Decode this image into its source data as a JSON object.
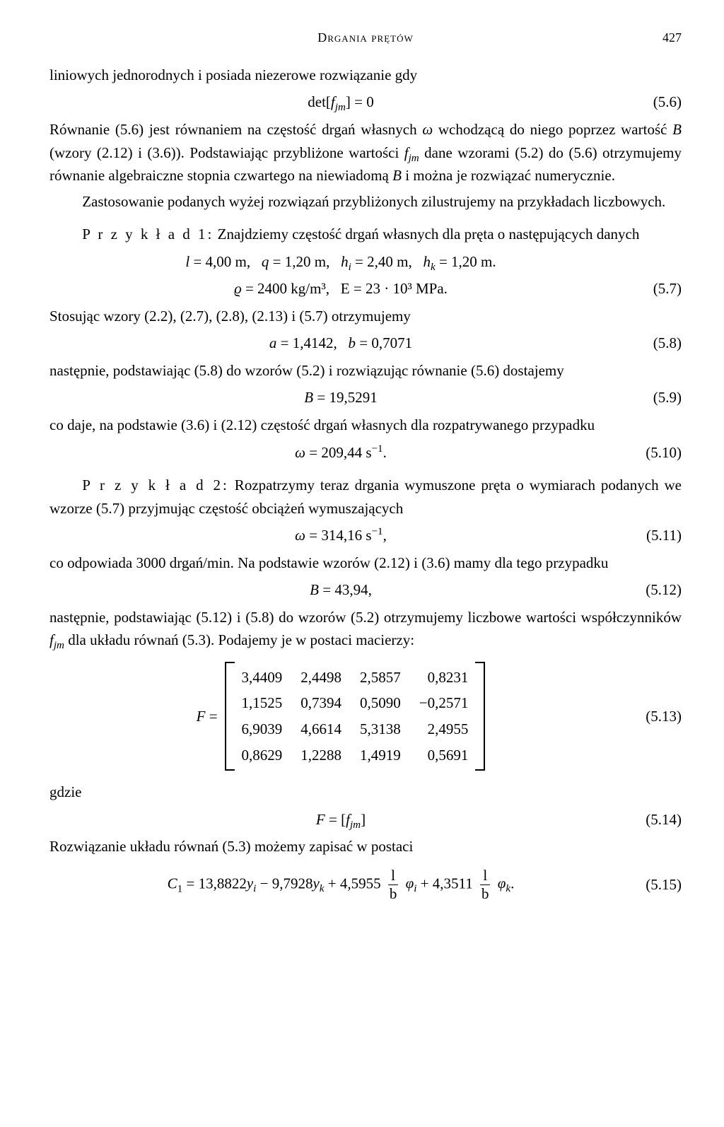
{
  "header": {
    "title": "Drgania prętów",
    "page_number": "427"
  },
  "p1": "liniowych jednorodnych i posiada niezerowe rozwiązanie gdy",
  "eq56": {
    "body": "det[fⱼₘ] = 0",
    "num": "(5.6)"
  },
  "p2a": "Równanie (5.6) jest równaniem na częstość drgań własnych ",
  "p2b": " wchodzącą do niego poprzez wartość ",
  "p2c": " (wzory (2.12) i (3.6)). Podstawiając przybliżone wartości ",
  "p2d": " dane wzorami (5.2) do (5.6) otrzymujemy równanie algebraiczne stopnia czwartego na niewiadomą ",
  "p2e": " i można je rozwiązać numerycznie.",
  "p3": "Zastosowanie podanych wyżej rozwiązań przybliżonych zilustrujemy na przykładach liczbowych.",
  "ex1_label": "P r z y k ł a d  1:",
  "ex1_text": "  Znajdziemy częstość drgań własnych dla pręta o następujących danych",
  "eq57a": "l = 4,00 m,    q = 1,20 m,    hᵢ = 2,40 m,    hₖ = 1,20 m.",
  "eq57b": "ϱ = 2400 kg/m³,    E = 23 · 10³ MPa.",
  "eq57n": "(5.7)",
  "p4": "Stosując wzory (2.2), (2.7), (2.8), (2.13) i (5.7) otrzymujemy",
  "eq58": {
    "body": "a = 1,4142,    b = 0,7071",
    "num": "(5.8)"
  },
  "p5": "następnie, podstawiając (5.8) do wzorów (5.2) i rozwiązując równanie (5.6) dostajemy",
  "eq59": {
    "body": "B = 19,5291",
    "num": "(5.9)"
  },
  "p6": "co daje, na podstawie (3.6) i (2.12) częstość drgań własnych dla rozpatrywanego przypadku",
  "eq510": {
    "body": "ω = 209,44 s⁻¹.",
    "num": "(5.10)"
  },
  "ex2_label": "P r z y k ł a d  2:",
  "ex2_text": "  Rozpatrzymy teraz drgania wymuszone pręta o wymiarach podanych we wzorze (5.7) przyjmując częstość obciążeń wymuszających",
  "eq511": {
    "body": "ω = 314,16 s⁻¹,",
    "num": "(5.11)"
  },
  "p7": "co odpowiada 3000 drgań/min. Na podstawie wzorów (2.12) i (3.6) mamy dla tego przypadku",
  "eq512": {
    "body": "B = 43,94,",
    "num": "(5.12)"
  },
  "p8a": "następnie, podstawiając (5.12) i (5.8) do wzorów (5.2) otrzymujemy liczbowe wartości współczynników ",
  "p8b": " dla układu równań (5.3). Podajemy je w postaci macierzy:",
  "matrix": {
    "prefix": "F =",
    "cells": [
      [
        "3,4409",
        "2,4498",
        "2,5857",
        "0,8231"
      ],
      [
        "1,1525",
        "0,7394",
        "0,5090",
        "−0,2571"
      ],
      [
        "6,9039",
        "4,6614",
        "5,3138",
        "2,4955"
      ],
      [
        "0,8629",
        "1,2288",
        "1,4919",
        "0,5691"
      ]
    ],
    "num": "(5.13)"
  },
  "p9": "gdzie",
  "eq514": {
    "body": "F = [fⱼₘ]",
    "num": "(5.14)"
  },
  "p10": "Rozwiązanie układu równań (5.3) możemy zapisać w postaci",
  "eq515": {
    "c": "C₁ = 13,8822yᵢ − 9,7928yₖ + 4,5955 ",
    "t1": " φᵢ + 4,3511 ",
    "t2": " φₖ.",
    "frac_num": "l",
    "frac_den": "b",
    "num": "(5.15)"
  }
}
